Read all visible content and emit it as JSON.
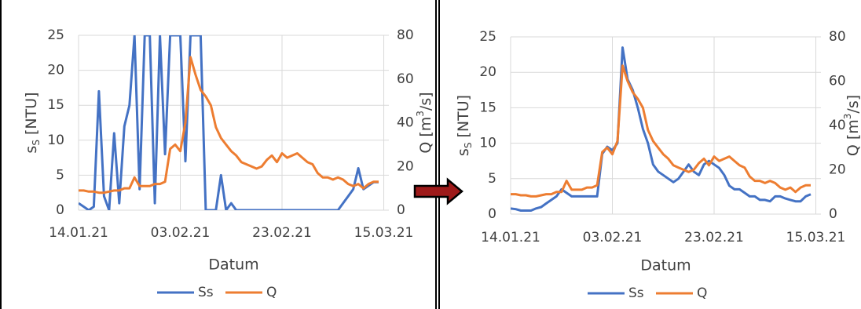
{
  "chart_data": [
    {
      "type": "line",
      "xlabel": "Datum",
      "ylabel": [
        "s",
        "S",
        " [NTU]"
      ],
      "y2label": [
        "Q  [m",
        "3",
        "/s]"
      ],
      "x": [
        "14.01.21",
        "15.01.21",
        "16.01.21",
        "17.01.21",
        "18.01.21",
        "19.01.21",
        "20.01.21",
        "21.01.21",
        "22.01.21",
        "23.01.21",
        "24.01.21",
        "25.01.21",
        "26.01.21",
        "27.01.21",
        "28.01.21",
        "29.01.21",
        "30.01.21",
        "31.01.21",
        "01.02.21",
        "02.02.21",
        "03.02.21",
        "04.02.21",
        "05.02.21",
        "06.02.21",
        "07.02.21",
        "08.02.21",
        "09.02.21",
        "10.02.21",
        "11.02.21",
        "12.02.21",
        "13.02.21",
        "14.02.21",
        "15.02.21",
        "16.02.21",
        "17.02.21",
        "18.02.21",
        "19.02.21",
        "20.02.21",
        "21.02.21",
        "22.02.21",
        "23.02.21",
        "24.02.21",
        "25.02.21",
        "26.02.21",
        "27.02.21",
        "28.02.21",
        "01.03.21",
        "02.03.21",
        "03.03.21",
        "04.03.21",
        "05.03.21",
        "06.03.21",
        "07.03.21",
        "08.03.21",
        "09.03.21",
        "10.03.21",
        "11.03.21",
        "12.03.21",
        "13.03.21",
        "14.03.21"
      ],
      "series": [
        {
          "name": "Ss",
          "color": "#4472c4",
          "values": [
            1,
            0.5,
            0,
            0.5,
            17,
            2,
            0,
            11,
            1,
            12,
            15,
            25,
            3,
            25,
            25,
            1,
            25,
            8,
            25,
            25,
            25,
            7,
            25,
            25,
            25,
            0,
            0,
            0,
            5,
            0,
            1,
            0,
            0,
            0,
            0,
            0,
            0,
            0,
            0,
            0,
            0,
            0,
            0,
            0,
            0,
            0,
            0,
            0,
            0,
            0,
            0,
            0,
            1,
            2,
            3,
            6,
            3,
            3.5,
            4,
            4
          ]
        },
        {
          "name": "Q",
          "color": "#ed7d31",
          "axis": "y2",
          "values": [
            9,
            9,
            8.5,
            8.5,
            8,
            8,
            8.5,
            9,
            9,
            10,
            10,
            15,
            11,
            11,
            11,
            12,
            12,
            13,
            28,
            30,
            27,
            40,
            70,
            62,
            55,
            52,
            48,
            38,
            33,
            30,
            27,
            25,
            22,
            21,
            20,
            19,
            20,
            23,
            25,
            22,
            26,
            24,
            25,
            26,
            24,
            22,
            21,
            17,
            15,
            15,
            14,
            15,
            14,
            12,
            11,
            12,
            10,
            12,
            13,
            13
          ]
        }
      ],
      "xlim": [
        "14.01.21",
        "16.03.21"
      ],
      "xticks": [
        "14.01.21",
        "03.02.21",
        "23.02.21",
        "15.03.21"
      ],
      "ylim": [
        0,
        25
      ],
      "yticks": [
        0,
        5,
        10,
        15,
        20,
        25
      ],
      "y2lim": [
        0,
        80
      ],
      "y2ticks": [
        0,
        20,
        40,
        60,
        80
      ],
      "grid": true
    },
    {
      "type": "line",
      "xlabel": "Datum",
      "ylabel": [
        "s",
        "S",
        " [NTU]"
      ],
      "y2label": [
        "Q  [m",
        "3",
        "/s]"
      ],
      "x": [
        "14.01.21",
        "15.01.21",
        "16.01.21",
        "17.01.21",
        "18.01.21",
        "19.01.21",
        "20.01.21",
        "21.01.21",
        "22.01.21",
        "23.01.21",
        "24.01.21",
        "25.01.21",
        "26.01.21",
        "27.01.21",
        "28.01.21",
        "29.01.21",
        "30.01.21",
        "31.01.21",
        "01.02.21",
        "02.02.21",
        "03.02.21",
        "04.02.21",
        "05.02.21",
        "06.02.21",
        "07.02.21",
        "08.02.21",
        "09.02.21",
        "10.02.21",
        "11.02.21",
        "12.02.21",
        "13.02.21",
        "14.02.21",
        "15.02.21",
        "16.02.21",
        "17.02.21",
        "18.02.21",
        "19.02.21",
        "20.02.21",
        "21.02.21",
        "22.02.21",
        "23.02.21",
        "24.02.21",
        "25.02.21",
        "26.02.21",
        "27.02.21",
        "28.02.21",
        "01.03.21",
        "02.03.21",
        "03.03.21",
        "04.03.21",
        "05.03.21",
        "06.03.21",
        "07.03.21",
        "08.03.21",
        "09.03.21",
        "10.03.21",
        "11.03.21",
        "12.03.21",
        "13.03.21",
        "14.03.21"
      ],
      "series": [
        {
          "name": "Ss",
          "color": "#4472c4",
          "values": [
            0.8,
            0.7,
            0.5,
            0.5,
            0.5,
            0.8,
            1,
            1.5,
            2,
            2.5,
            3.5,
            3,
            2.5,
            2.5,
            2.5,
            2.5,
            2.5,
            2.5,
            8.5,
            9.5,
            9,
            10,
            23.5,
            19,
            17.5,
            15,
            12,
            10,
            7,
            6,
            5.5,
            5,
            4.5,
            5,
            6,
            7,
            6,
            5.5,
            7,
            7.5,
            7,
            6.5,
            5.5,
            4,
            3.5,
            3.5,
            3,
            2.5,
            2.5,
            2,
            2,
            1.8,
            2.5,
            2.5,
            2.2,
            2,
            1.8,
            1.8,
            2.5,
            2.8
          ]
        },
        {
          "name": "Q",
          "color": "#ed7d31",
          "axis": "y2",
          "values": [
            9,
            9,
            8.5,
            8.5,
            8,
            8,
            8.5,
            9,
            9,
            10,
            10,
            15,
            11,
            11,
            11,
            12,
            12,
            13,
            28,
            30,
            27,
            33,
            67,
            60,
            55,
            52,
            48,
            38,
            33,
            30,
            27,
            25,
            22,
            21,
            20,
            19,
            20,
            23,
            25,
            22,
            26,
            24,
            25,
            26,
            24,
            22,
            21,
            17,
            15,
            15,
            14,
            15,
            14,
            12,
            11,
            12,
            10,
            12,
            13,
            13
          ]
        }
      ],
      "xlim": [
        "14.01.21",
        "16.03.21"
      ],
      "xticks": [
        "14.01.21",
        "03.02.21",
        "23.02.21",
        "15.03.21"
      ],
      "ylim": [
        0,
        25
      ],
      "yticks": [
        0,
        5,
        10,
        15,
        20,
        25
      ],
      "y2lim": [
        0,
        80
      ],
      "y2ticks": [
        0,
        20,
        40,
        60,
        80
      ],
      "grid": true
    }
  ]
}
